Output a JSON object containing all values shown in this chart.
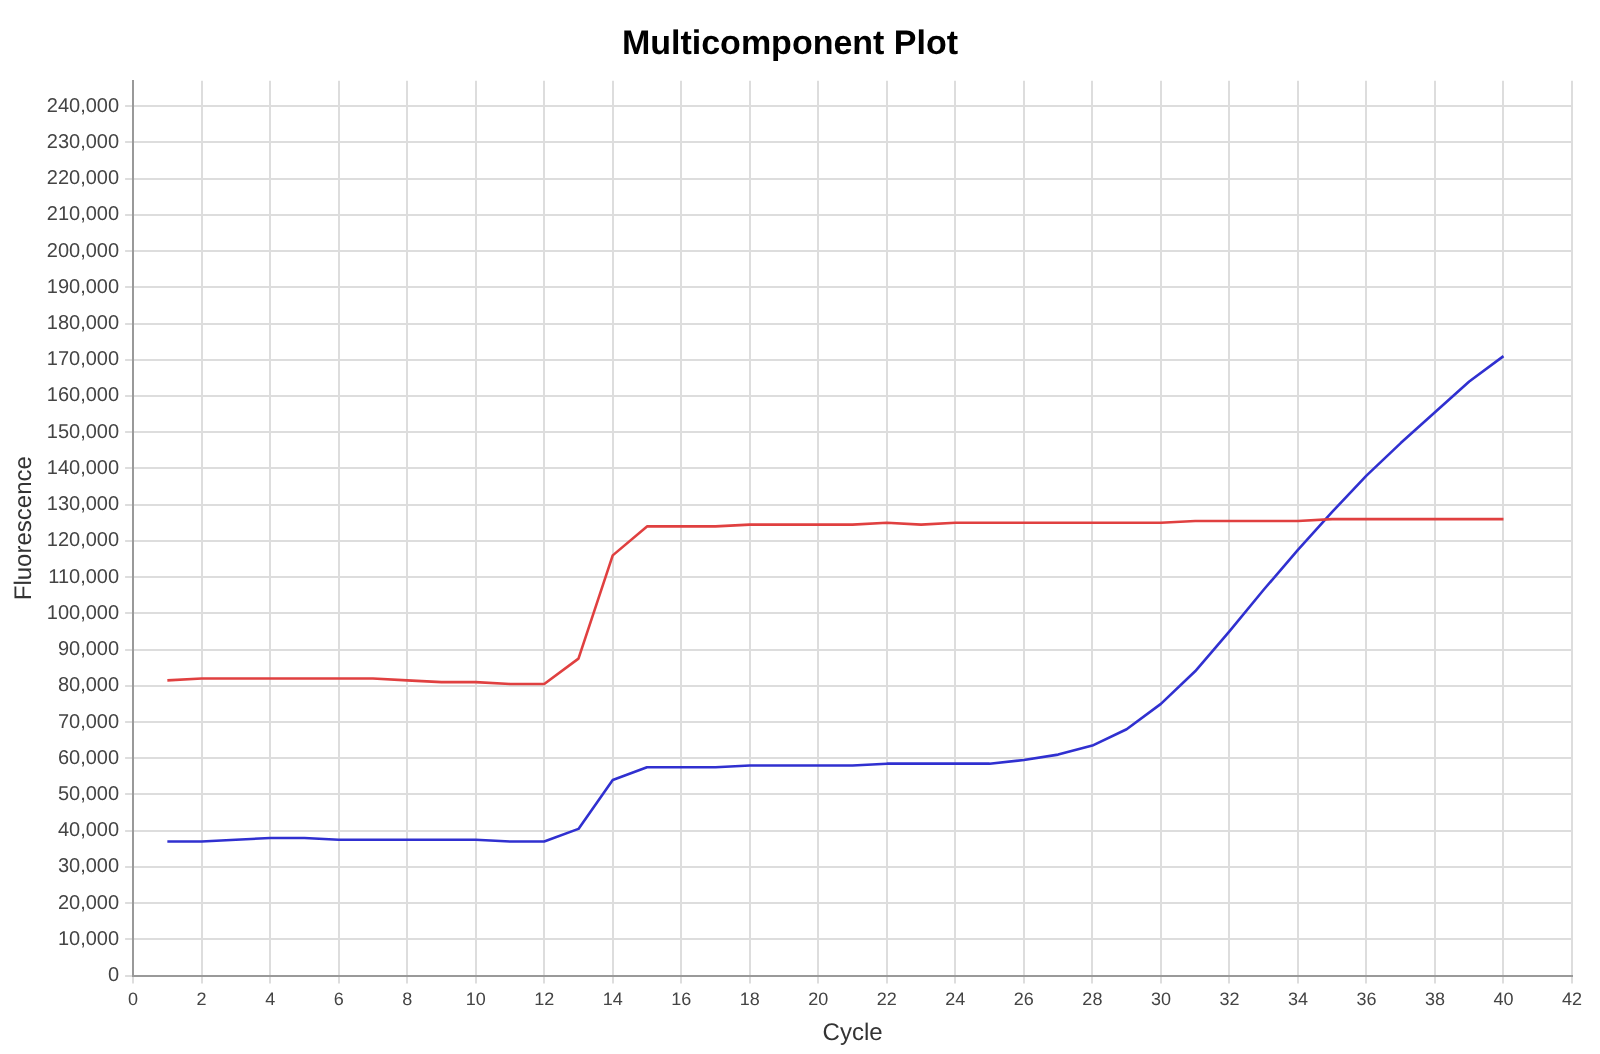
{
  "chart_data": {
    "type": "line",
    "title": "Multicomponent Plot",
    "xlabel": "Cycle",
    "ylabel": "Fluorescence",
    "x": [
      1,
      2,
      3,
      4,
      5,
      6,
      7,
      8,
      9,
      10,
      11,
      12,
      13,
      14,
      15,
      16,
      17,
      18,
      19,
      20,
      21,
      22,
      23,
      24,
      25,
      26,
      27,
      28,
      29,
      30,
      31,
      32,
      33,
      34,
      35,
      36,
      37,
      38,
      39,
      40
    ],
    "series": [
      {
        "color": "#e04040",
        "values": [
          81500,
          82000,
          82000,
          82000,
          82000,
          82000,
          82000,
          81500,
          81000,
          81000,
          80500,
          80500,
          87500,
          116000,
          124000,
          124000,
          124000,
          124500,
          124500,
          124500,
          124500,
          125000,
          124500,
          125000,
          125000,
          125000,
          125000,
          125000,
          125000,
          125000,
          125500,
          125500,
          125500,
          125500,
          126000,
          126000,
          126000,
          126000,
          126000,
          126000
        ]
      },
      {
        "color": "#3030d0",
        "values": [
          37000,
          37000,
          37500,
          38000,
          38000,
          37500,
          37500,
          37500,
          37500,
          37500,
          37000,
          37000,
          40500,
          54000,
          57500,
          57500,
          57500,
          58000,
          58000,
          58000,
          58000,
          58500,
          58500,
          58500,
          58500,
          59500,
          61000,
          63500,
          68000,
          75000,
          84000,
          95000,
          106500,
          117500,
          128000,
          138000,
          147000,
          155500,
          164000,
          171000
        ]
      }
    ],
    "xlim": [
      0,
      42
    ],
    "xticks": [
      0,
      2,
      4,
      6,
      8,
      10,
      12,
      14,
      16,
      18,
      20,
      22,
      24,
      26,
      28,
      30,
      32,
      34,
      36,
      38,
      40,
      42
    ],
    "ylim": [
      0,
      247000
    ],
    "yticks": [
      0,
      {
        "value": 10000,
        "label": "10,000"
      },
      {
        "value": 20000,
        "label": "20,000"
      },
      {
        "value": 30000,
        "label": "30,000"
      },
      {
        "value": 40000,
        "label": "40,000"
      },
      {
        "value": 50000,
        "label": "50,000"
      },
      {
        "value": 60000,
        "label": "60,000"
      },
      {
        "value": 70000,
        "label": "70,000"
      },
      {
        "value": 80000,
        "label": "80,000"
      },
      {
        "value": 90000,
        "label": "90,000"
      },
      {
        "value": 100000,
        "label": "100,000"
      },
      {
        "value": 110000,
        "label": "110,000"
      },
      {
        "value": 120000,
        "label": "120,000"
      },
      {
        "value": 130000,
        "label": "130,000"
      },
      {
        "value": 140000,
        "label": "140,000"
      },
      {
        "value": 150000,
        "label": "150,000"
      },
      {
        "value": 160000,
        "label": "160,000"
      },
      {
        "value": 170000,
        "label": "170,000"
      },
      {
        "value": 180000,
        "label": "180,000"
      },
      {
        "value": 190000,
        "label": "190,000"
      },
      {
        "value": 200000,
        "label": "200,000"
      },
      {
        "value": 210000,
        "label": "210,000"
      },
      {
        "value": 220000,
        "label": "220,000"
      },
      {
        "value": 230000,
        "label": "230,000"
      },
      {
        "value": 240000,
        "label": "240,000"
      }
    ],
    "grid": true,
    "legend": false,
    "marker": "none",
    "line_style": "solid"
  }
}
